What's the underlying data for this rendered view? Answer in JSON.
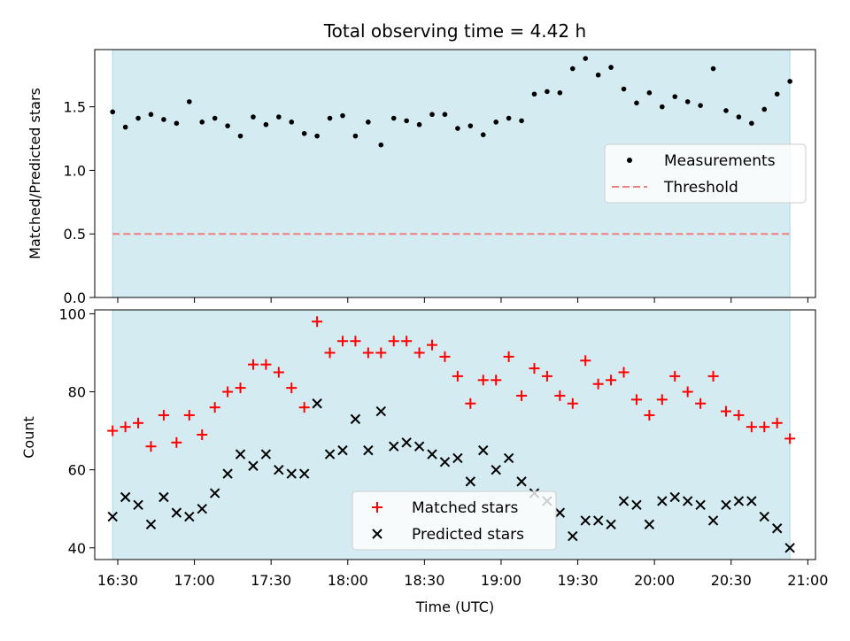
{
  "chart_data": [
    {
      "type": "scatter",
      "title": "Total observing time = 4.42 h",
      "ylabel": "Matched/Predicted stars",
      "xlabel": "",
      "ylim": [
        0,
        1.95
      ],
      "yticks": [
        0.0,
        0.5,
        1.0,
        1.5
      ],
      "ytick_labels": [
        "0.0",
        "0.5",
        "1.0",
        "1.5"
      ],
      "shaded_band_color": "#d4ebf1",
      "series": [
        {
          "name": "Measurements",
          "color": "#000000",
          "marker": "dot",
          "x": [
            "16:28",
            "16:33",
            "16:38",
            "16:43",
            "16:48",
            "16:53",
            "16:58",
            "17:03",
            "17:08",
            "17:13",
            "17:18",
            "17:23",
            "17:28",
            "17:33",
            "17:38",
            "17:43",
            "17:48",
            "17:53",
            "17:58",
            "18:03",
            "18:08",
            "18:13",
            "18:18",
            "18:23",
            "18:28",
            "18:33",
            "18:38",
            "18:43",
            "18:48",
            "18:53",
            "18:58",
            "19:03",
            "19:08",
            "19:13",
            "19:18",
            "19:23",
            "19:28",
            "19:33",
            "19:38",
            "19:43",
            "19:48",
            "19:53",
            "19:58",
            "20:03",
            "20:08",
            "20:13",
            "20:18",
            "20:23",
            "20:28",
            "20:33",
            "20:38",
            "20:43",
            "20:48",
            "20:53"
          ],
          "y": [
            1.46,
            1.34,
            1.41,
            1.44,
            1.4,
            1.37,
            1.54,
            1.38,
            1.41,
            1.35,
            1.27,
            1.42,
            1.36,
            1.42,
            1.38,
            1.29,
            1.27,
            1.41,
            1.43,
            1.27,
            1.38,
            1.2,
            1.41,
            1.39,
            1.36,
            1.44,
            1.44,
            1.33,
            1.35,
            1.28,
            1.38,
            1.41,
            1.39,
            1.6,
            1.62,
            1.61,
            1.8,
            1.88,
            1.75,
            1.81,
            1.64,
            1.53,
            1.61,
            1.5,
            1.58,
            1.54,
            1.51,
            1.8,
            1.47,
            1.42,
            1.37,
            1.48,
            1.6,
            1.7
          ]
        },
        {
          "name": "Threshold",
          "color": "#f08080",
          "marker": "dashed-line",
          "x": [
            "16:28",
            "20:53"
          ],
          "y": [
            0.5,
            0.5
          ]
        }
      ],
      "legend": "center-right"
    },
    {
      "type": "scatter",
      "title": "",
      "ylabel": "Count",
      "xlabel": "Time (UTC)",
      "xlim": [
        "16:21",
        "21:03"
      ],
      "xticks": [
        "16:30",
        "17:00",
        "17:30",
        "18:00",
        "18:30",
        "19:00",
        "19:30",
        "20:00",
        "20:30",
        "21:00"
      ],
      "ylim": [
        37,
        101
      ],
      "yticks": [
        40,
        60,
        80,
        100
      ],
      "ytick_labels": [
        "40",
        "60",
        "80",
        "100"
      ],
      "shaded_band_color": "#d4ebf1",
      "series": [
        {
          "name": "Matched stars",
          "color": "#ff0000",
          "marker": "plus",
          "x": [
            "16:28",
            "16:33",
            "16:38",
            "16:43",
            "16:48",
            "16:53",
            "16:58",
            "17:03",
            "17:08",
            "17:13",
            "17:18",
            "17:23",
            "17:28",
            "17:33",
            "17:38",
            "17:43",
            "17:48",
            "17:53",
            "17:58",
            "18:03",
            "18:08",
            "18:13",
            "18:18",
            "18:23",
            "18:28",
            "18:33",
            "18:38",
            "18:43",
            "18:48",
            "18:53",
            "18:58",
            "19:03",
            "19:08",
            "19:13",
            "19:18",
            "19:23",
            "19:28",
            "19:33",
            "19:38",
            "19:43",
            "19:48",
            "19:53",
            "19:58",
            "20:03",
            "20:08",
            "20:13",
            "20:18",
            "20:23",
            "20:28",
            "20:33",
            "20:38",
            "20:43",
            "20:48",
            "20:53"
          ],
          "y": [
            70,
            71,
            72,
            66,
            74,
            67,
            74,
            69,
            76,
            80,
            81,
            87,
            87,
            85,
            81,
            76,
            98,
            90,
            93,
            93,
            90,
            90,
            93,
            93,
            90,
            92,
            89,
            84,
            77,
            83,
            83,
            89,
            79,
            86,
            84,
            79,
            77,
            88,
            82,
            83,
            85,
            78,
            74,
            78,
            84,
            80,
            77,
            84,
            75,
            74,
            71,
            71,
            72,
            68
          ]
        },
        {
          "name": "Predicted stars",
          "color": "#000000",
          "marker": "cross",
          "x": [
            "16:28",
            "16:33",
            "16:38",
            "16:43",
            "16:48",
            "16:53",
            "16:58",
            "17:03",
            "17:08",
            "17:13",
            "17:18",
            "17:23",
            "17:28",
            "17:33",
            "17:38",
            "17:43",
            "17:48",
            "17:53",
            "17:58",
            "18:03",
            "18:08",
            "18:13",
            "18:18",
            "18:23",
            "18:28",
            "18:33",
            "18:38",
            "18:43",
            "18:48",
            "18:53",
            "18:58",
            "19:03",
            "19:08",
            "19:13",
            "19:18",
            "19:23",
            "19:28",
            "19:33",
            "19:38",
            "19:43",
            "19:48",
            "19:53",
            "19:58",
            "20:03",
            "20:08",
            "20:13",
            "20:18",
            "20:23",
            "20:28",
            "20:33",
            "20:38",
            "20:43",
            "20:48",
            "20:53"
          ],
          "y": [
            48,
            53,
            51,
            46,
            53,
            49,
            48,
            50,
            54,
            59,
            64,
            61,
            64,
            60,
            59,
            59,
            77,
            64,
            65,
            73,
            65,
            75,
            66,
            67,
            66,
            64,
            62,
            63,
            57,
            65,
            60,
            63,
            57,
            54,
            52,
            49,
            43,
            47,
            47,
            46,
            52,
            51,
            46,
            52,
            53,
            52,
            51,
            47,
            51,
            52,
            52,
            48,
            45,
            40
          ]
        }
      ],
      "legend": "lower-center"
    }
  ]
}
